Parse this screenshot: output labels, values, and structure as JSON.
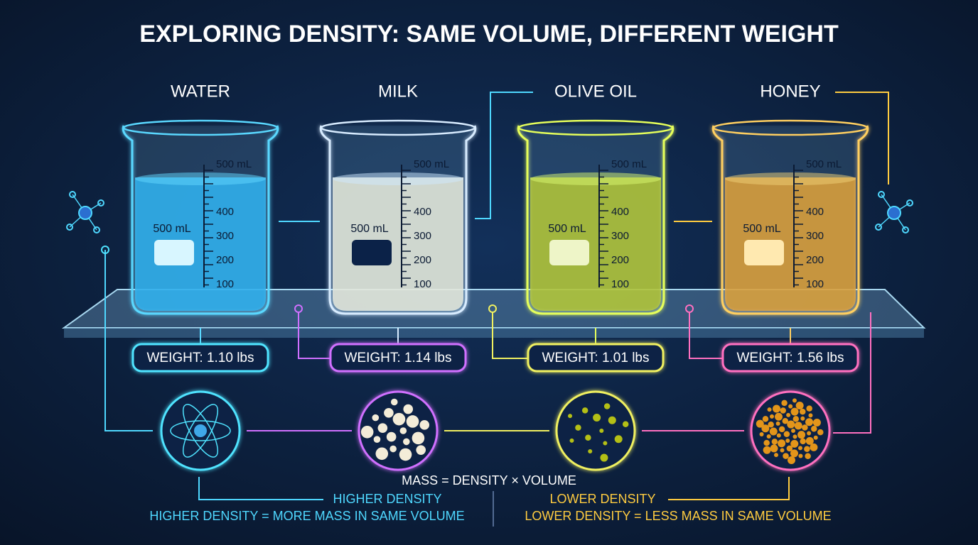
{
  "title": "EXPLORING DENSITY: SAME VOLUME, DIFFERENT WEIGHT",
  "scale_labels": [
    "500 mL",
    "400",
    "300",
    "200",
    "100"
  ],
  "beakers": [
    {
      "name": "WATER",
      "volume_label": "500 mL",
      "weight": "WEIGHT: 1.10 lbs",
      "liquid": "#1ea7e8",
      "glow": "#5ad8ff",
      "box": "#4fe3ff",
      "tag": "#d8f6ff"
    },
    {
      "name": "MILK",
      "volume_label": "500 mL",
      "weight": "WEIGHT: 1.14 lbs",
      "liquid": "#efe9d4",
      "glow": "#d8ecff",
      "box": "#d070ff",
      "tag": "#0b2248"
    },
    {
      "name": "OLIVE OIL",
      "volume_label": "500 mL",
      "weight": "WEIGHT: 1.01 lbs",
      "liquid": "#b4bf16",
      "glow": "#e6ff5a",
      "box": "#f0f060",
      "tag": "#eef5c8"
    },
    {
      "name": "HONEY",
      "volume_label": "500 mL",
      "weight": "WEIGHT: 1.56 lbs",
      "liquid": "#e3951a",
      "glow": "#ffcf60",
      "box": "#ff70c0",
      "tag": "#ffe9b0"
    }
  ],
  "formula": "MASS = DENSITY × VOLUME",
  "higher": {
    "label": "HIGHER DENSITY",
    "note": "HIGHER DENSITY = MORE MASS IN SAME VOLUME"
  },
  "lower": {
    "label": "LOWER DENSITY",
    "note": "LOWER DENSITY = LESS MASS IN SAME VOLUME"
  }
}
